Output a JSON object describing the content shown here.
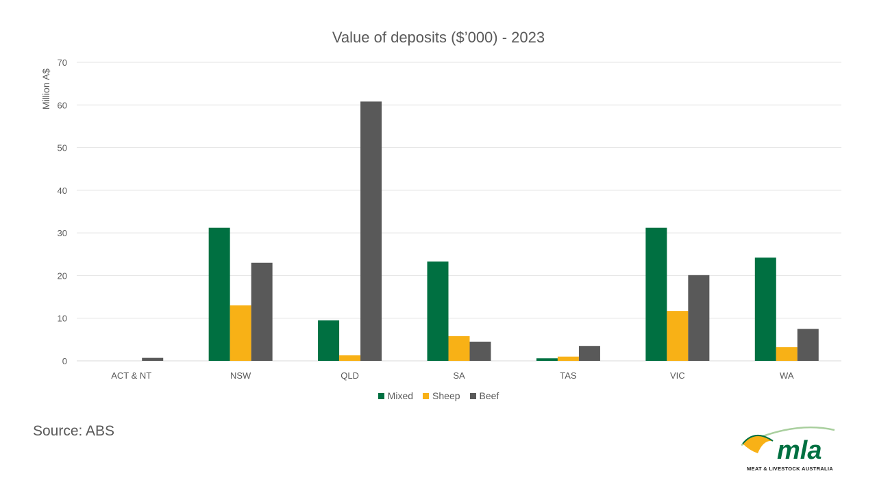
{
  "chart_data": {
    "type": "bar",
    "title": "Value of deposits ($’000) - 2023",
    "ylabel": "Million A$",
    "xlabel": "",
    "ylim": [
      0,
      70
    ],
    "yticks": [
      0,
      10,
      20,
      30,
      40,
      50,
      60,
      70
    ],
    "grid": true,
    "legend_position": "bottom",
    "categories": [
      "ACT & NT",
      "NSW",
      "QLD",
      "SA",
      "TAS",
      "VIC",
      "WA"
    ],
    "series": [
      {
        "name": "Mixed",
        "color": "#007041",
        "values": [
          0,
          31.2,
          9.5,
          23.3,
          0.6,
          31.2,
          24.2
        ]
      },
      {
        "name": "Sheep",
        "color": "#F8B116",
        "values": [
          0,
          13.0,
          1.3,
          5.8,
          1.0,
          11.7,
          3.2
        ]
      },
      {
        "name": "Beef",
        "color": "#595959",
        "values": [
          0.7,
          23.0,
          60.8,
          4.5,
          3.5,
          20.1,
          7.5
        ]
      }
    ]
  },
  "source": "Source: ABS",
  "logo": {
    "text": "mla",
    "caption": "MEAT & LIVESTOCK AUSTRALIA",
    "colors": {
      "green": "#007041",
      "yellow": "#F8B116",
      "swoosh": "#A9CF9E"
    }
  }
}
